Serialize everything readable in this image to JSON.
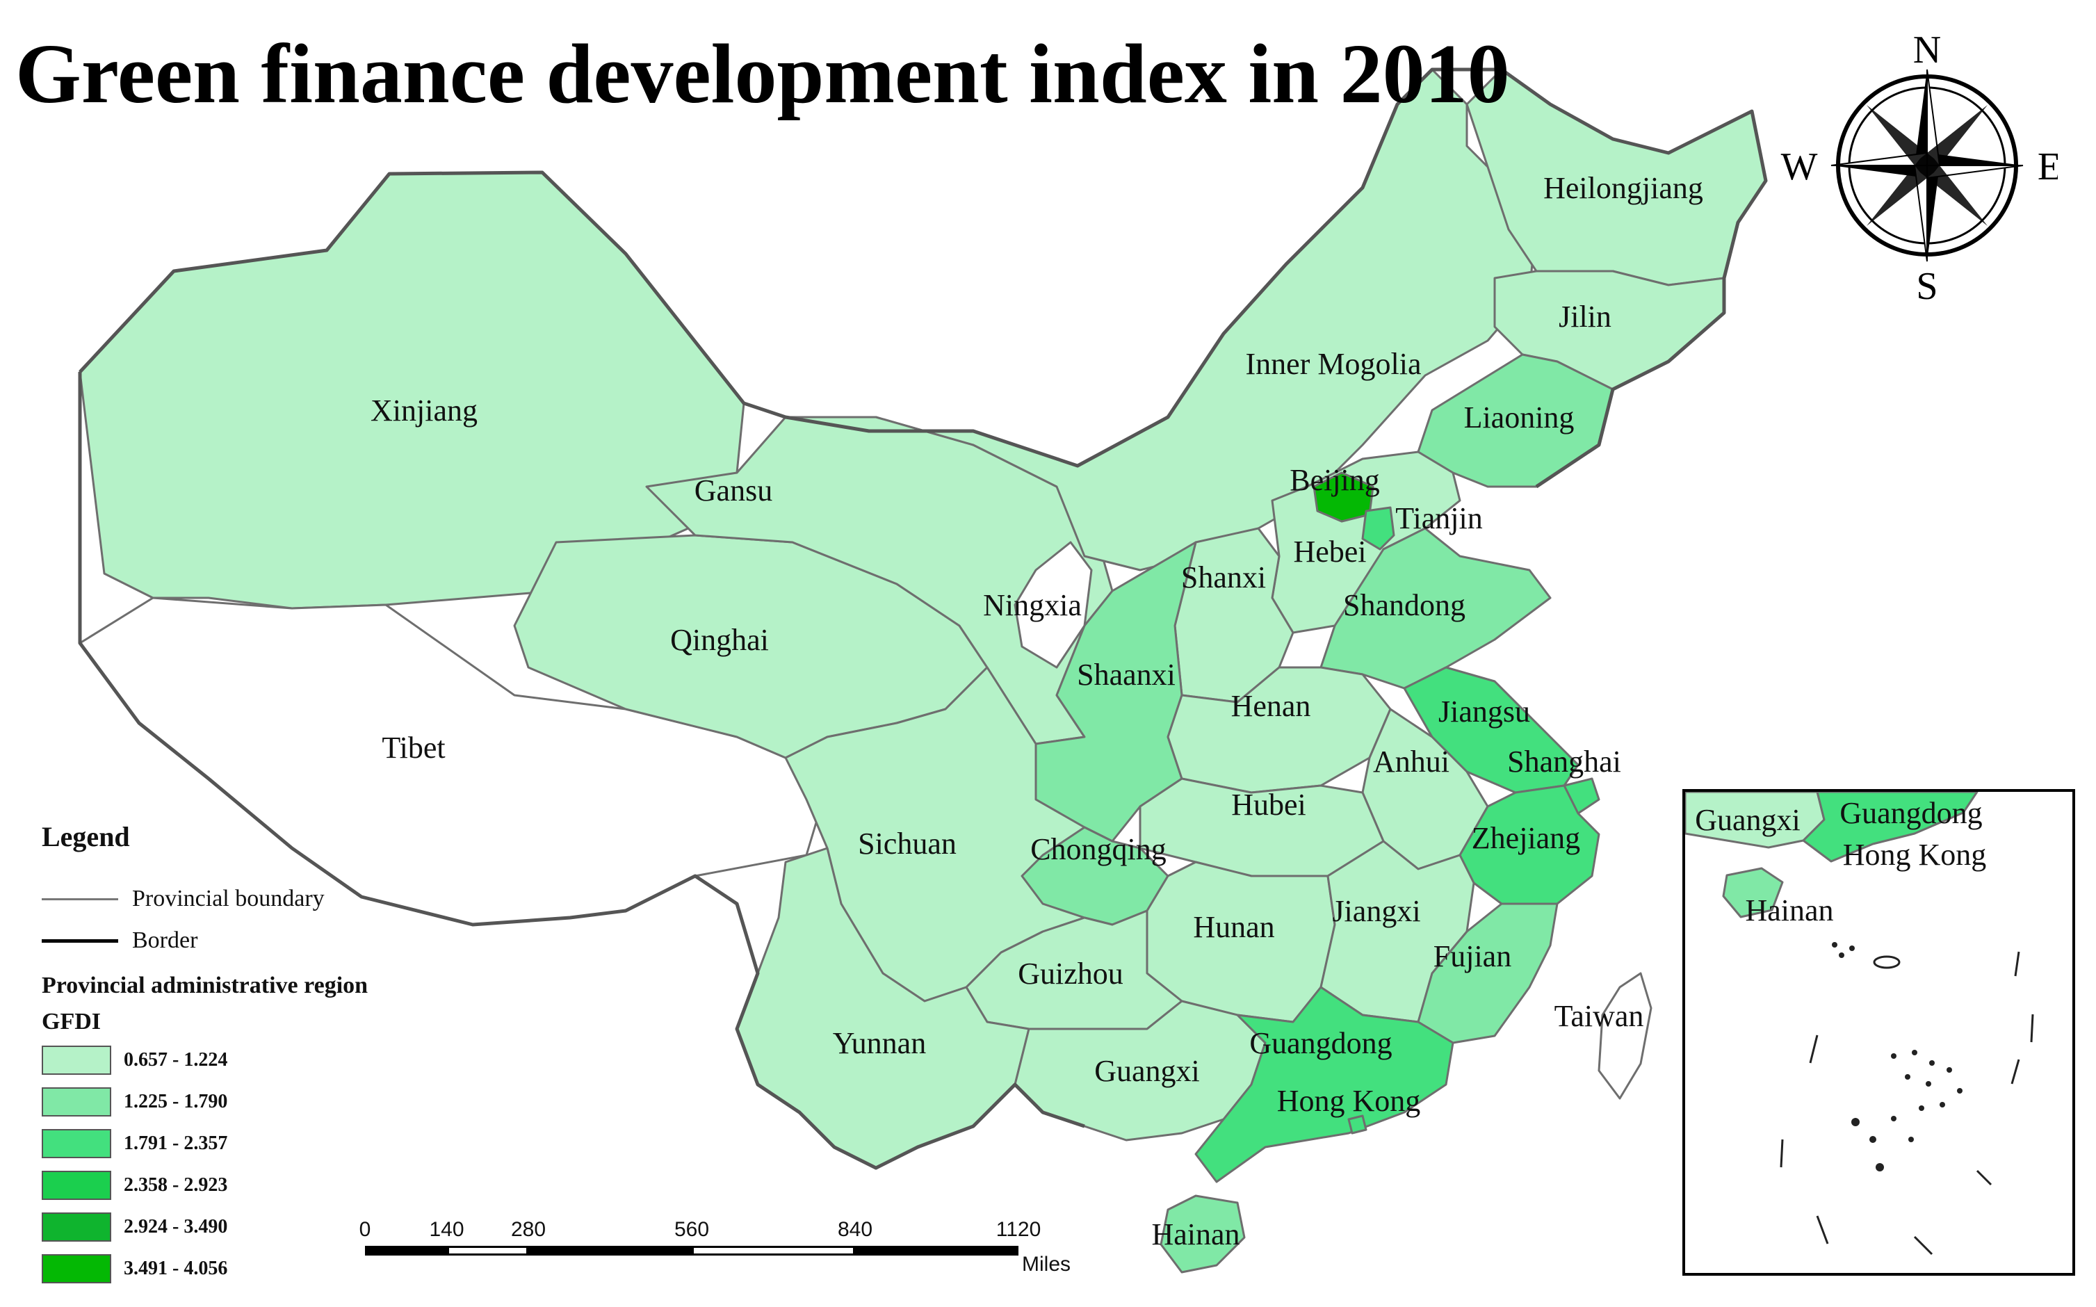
{
  "title": "Green finance development index in 2010",
  "compass": {
    "north": "N",
    "south": "S",
    "east": "E",
    "west": "W"
  },
  "legend": {
    "title": "Legend",
    "provincial_boundary": "Provincial boundary",
    "border": "Border",
    "region_heading": "Provincial administrative region",
    "index_heading": "GFDI",
    "classes": [
      {
        "range": "0.657 - 1.224",
        "color": "#b5f2c8"
      },
      {
        "range": "1.225 - 1.790",
        "color": "#80e8a6"
      },
      {
        "range": "1.791 - 2.357",
        "color": "#43e07e"
      },
      {
        "range": "2.358 - 2.923",
        "color": "#1bcf4e"
      },
      {
        "range": "2.924 - 3.490",
        "color": "#0fb42e"
      },
      {
        "range": "3.491 - 4.056",
        "color": "#04b804"
      }
    ]
  },
  "scale_bar": {
    "ticks": [
      "0",
      "140",
      "280",
      "560",
      "840",
      "1120"
    ],
    "units": "Miles"
  },
  "provinces": [
    {
      "id": "xinjiang",
      "label": "Xinjiang",
      "class": 0
    },
    {
      "id": "tibet",
      "label": "Tibet",
      "class": null
    },
    {
      "id": "qinghai",
      "label": "Qinghai",
      "class": 0
    },
    {
      "id": "gansu",
      "label": "Gansu",
      "class": 0
    },
    {
      "id": "inner-mongolia",
      "label": "Inner Mogolia",
      "class": 0
    },
    {
      "id": "heilongjiang",
      "label": "Heilongjiang",
      "class": 0
    },
    {
      "id": "jilin",
      "label": "Jilin",
      "class": 0
    },
    {
      "id": "liaoning",
      "label": "Liaoning",
      "class": 1
    },
    {
      "id": "beijing",
      "label": "Beijing",
      "class": 5
    },
    {
      "id": "tianjin",
      "label": "Tianjin",
      "class": 2
    },
    {
      "id": "hebei",
      "label": "Hebei",
      "class": 0
    },
    {
      "id": "shanxi",
      "label": "Shanxi",
      "class": 0
    },
    {
      "id": "ningxia",
      "label": "Ningxia",
      "class": null
    },
    {
      "id": "shaanxi",
      "label": "Shaanxi",
      "class": 1
    },
    {
      "id": "shandong",
      "label": "Shandong",
      "class": 1
    },
    {
      "id": "henan",
      "label": "Henan",
      "class": 0
    },
    {
      "id": "jiangsu",
      "label": "Jiangsu",
      "class": 2
    },
    {
      "id": "anhui",
      "label": "Anhui",
      "class": 0
    },
    {
      "id": "shanghai",
      "label": "Shanghai",
      "class": 2
    },
    {
      "id": "hubei",
      "label": "Hubei",
      "class": 0
    },
    {
      "id": "sichuan",
      "label": "Sichuan",
      "class": 0
    },
    {
      "id": "chongqing",
      "label": "Chongqing",
      "class": 1
    },
    {
      "id": "zhejiang",
      "label": "Zhejiang",
      "class": 2
    },
    {
      "id": "hunan",
      "label": "Hunan",
      "class": 0
    },
    {
      "id": "jiangxi",
      "label": "Jiangxi",
      "class": 0
    },
    {
      "id": "fujian",
      "label": "Fujian",
      "class": 1
    },
    {
      "id": "guizhou",
      "label": "Guizhou",
      "class": 0
    },
    {
      "id": "yunnan",
      "label": "Yunnan",
      "class": 0
    },
    {
      "id": "guangxi",
      "label": "Guangxi",
      "class": 0
    },
    {
      "id": "guangdong",
      "label": "Guangdong",
      "class": 2
    },
    {
      "id": "hong-kong",
      "label": "Hong Kong",
      "class": 2
    },
    {
      "id": "taiwan",
      "label": "Taiwan",
      "class": null
    },
    {
      "id": "hainan",
      "label": "Hainan",
      "class": 1
    }
  ],
  "inset": {
    "labels": [
      {
        "id": "inset-guangxi",
        "label": "Guangxi"
      },
      {
        "id": "inset-guangdong",
        "label": "Guangdong"
      },
      {
        "id": "inset-hong-kong",
        "label": "Hong Kong"
      },
      {
        "id": "inset-hainan",
        "label": "Hainan"
      }
    ]
  }
}
